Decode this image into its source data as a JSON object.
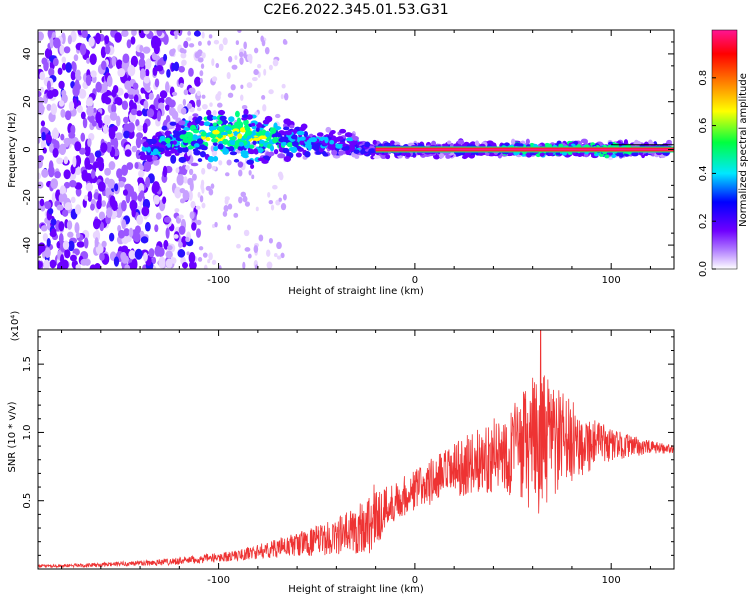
{
  "title": "C2E6.2022.345.01.53.G31",
  "chart_data": [
    {
      "type": "heatmap",
      "title": "C2E6.2022.345.01.53.G31",
      "xlabel": "Height of straight line (km)",
      "ylabel": "Frequency (Hz)",
      "xlim": [
        -192,
        132
      ],
      "ylim": [
        -50,
        50
      ],
      "x_ticks": [
        -100,
        0,
        100
      ],
      "x_tick_labels": [
        "-100",
        "0",
        "100"
      ],
      "y_ticks": [
        -40,
        -20,
        0,
        20,
        40
      ],
      "y_tick_labels": [
        "-40",
        "-20",
        "0",
        "20",
        "40"
      ],
      "grid": false,
      "colorbar": {
        "label": "Normalized spectral amplitude",
        "range": [
          0,
          1
        ],
        "ticks": [
          0.0,
          0.2,
          0.4,
          0.6,
          0.8
        ],
        "tick_labels": [
          "0.0",
          "0.2",
          "0.4",
          "0.6",
          "0.8"
        ],
        "colors": [
          "#ffffff",
          "#7a00ff",
          "#0000ff",
          "#00e5ff",
          "#00ff00",
          "#ffff00",
          "#ff7f00",
          "#ff0000",
          "#ff1493"
        ]
      },
      "features": {
        "noise_region_x": [
          -192,
          -120
        ],
        "signal_band_center_hz": 0,
        "strong_tone_x": [
          -20,
          132
        ],
        "broad_band_x": [
          -135,
          -30
        ],
        "broad_band_peak_hz": 10
      }
    },
    {
      "type": "line",
      "xlabel": "Height of straight line (km)",
      "ylabel": "SNR (10 * v/v)",
      "y_multiplier": "(x10⁴)",
      "xlim": [
        -192,
        132
      ],
      "ylim": [
        0,
        17500
      ],
      "x_ticks": [
        -100,
        0,
        100
      ],
      "x_tick_labels": [
        "-100",
        "0",
        "100"
      ],
      "y_ticks": [
        5000,
        10000,
        15000
      ],
      "y_tick_labels": [
        "0.5",
        "1.0",
        "1.5"
      ],
      "grid": false,
      "color": "#ee3333",
      "envelope": {
        "x": [
          -192,
          -160,
          -130,
          -110,
          -90,
          -75,
          -60,
          -45,
          -35,
          -25,
          -20,
          -15,
          -10,
          0,
          10,
          20,
          30,
          40,
          50,
          55,
          60,
          64,
          70,
          80,
          90,
          100,
          110,
          120,
          132
        ],
        "mean": [
          200,
          300,
          500,
          700,
          1000,
          1400,
          1800,
          2200,
          2600,
          3200,
          3800,
          4400,
          5000,
          5800,
          6500,
          7200,
          7800,
          8300,
          8700,
          8900,
          9100,
          9200,
          9300,
          9300,
          9200,
          9100,
          9000,
          8900,
          8800
        ],
        "spread": [
          100,
          150,
          250,
          300,
          400,
          600,
          900,
          1200,
          1600,
          2200,
          2600,
          1800,
          1400,
          1600,
          1800,
          2000,
          2300,
          2700,
          3400,
          4200,
          5000,
          5200,
          4500,
          3000,
          2000,
          1200,
          800,
          500,
          300
        ]
      },
      "peak": {
        "x": 64,
        "y": 17500
      }
    }
  ]
}
